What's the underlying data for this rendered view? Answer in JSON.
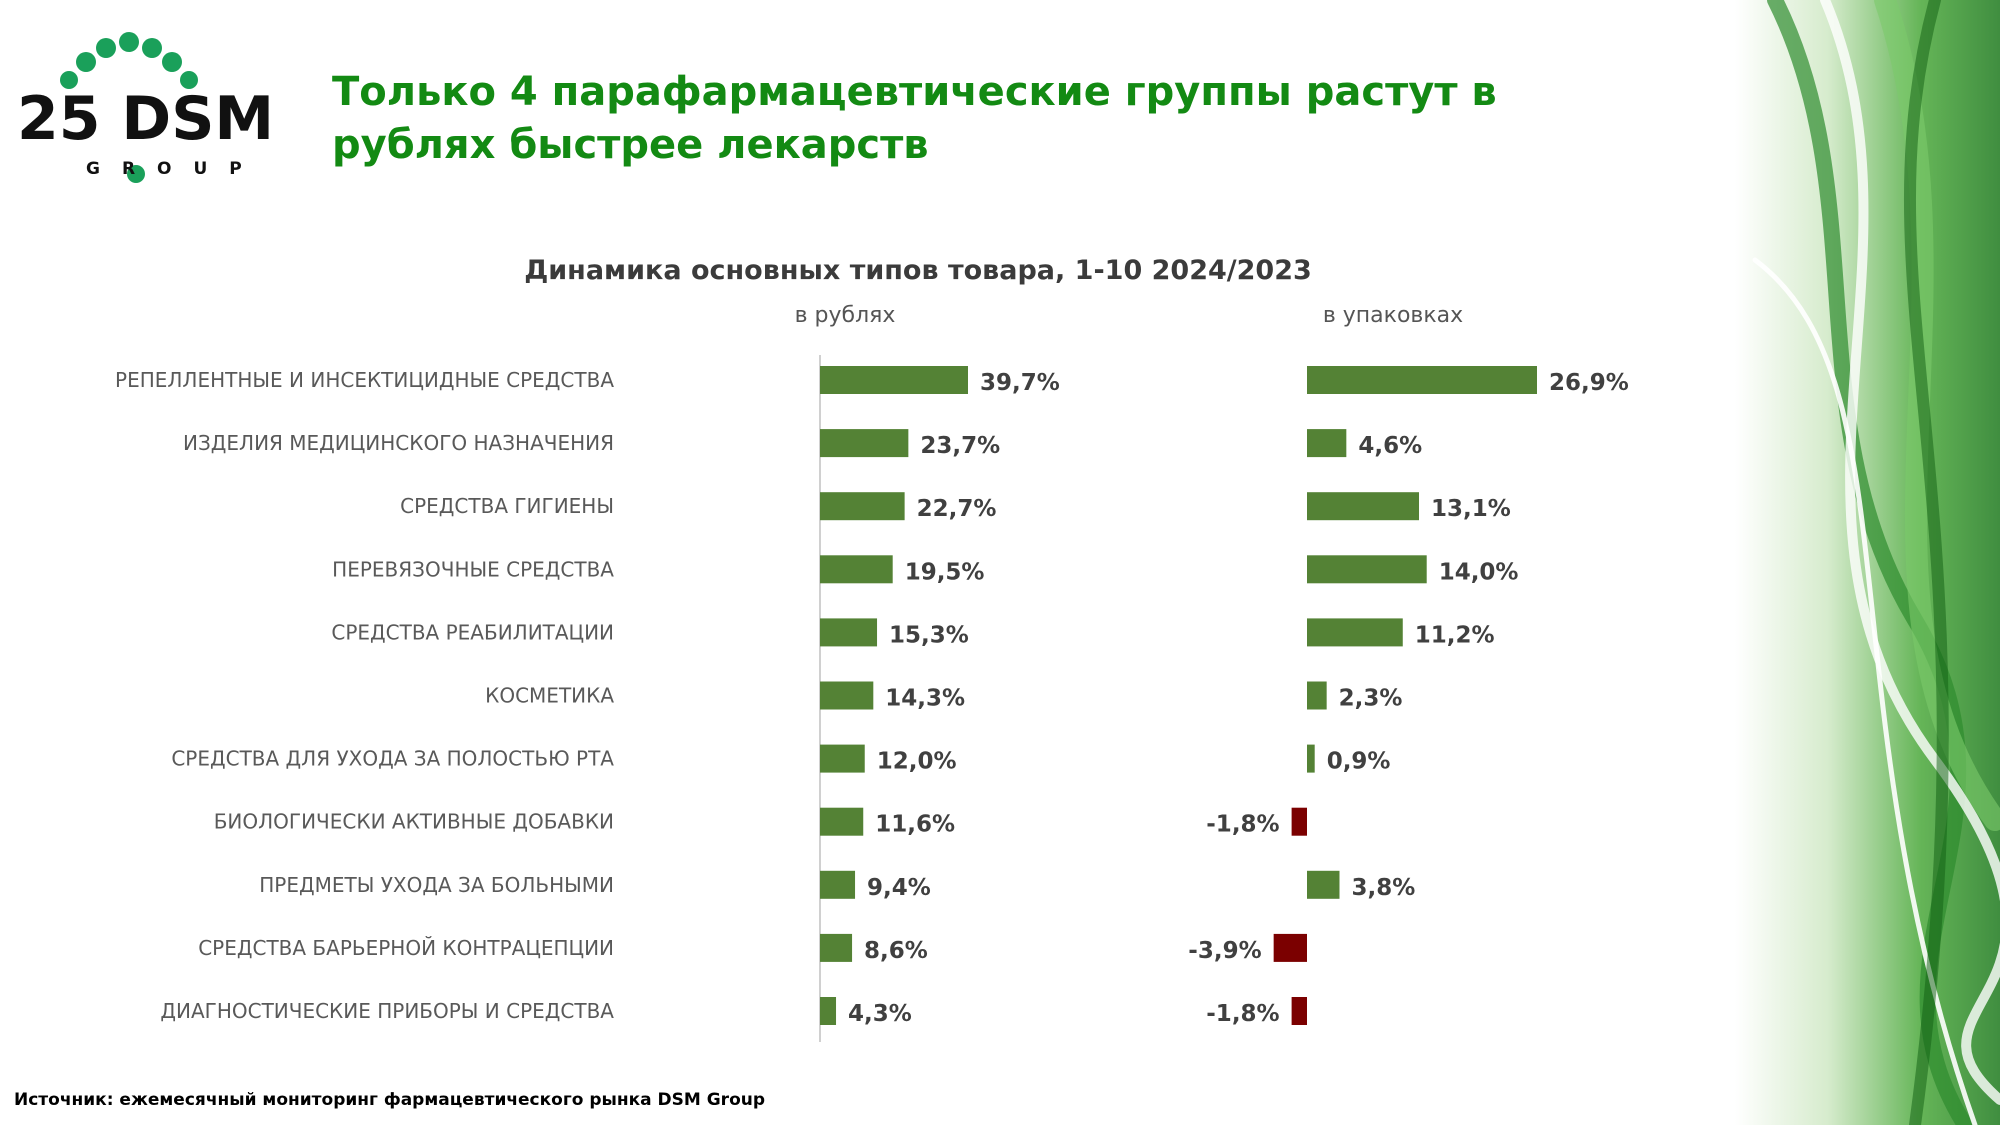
{
  "header": {
    "logo_text": "25 DSM",
    "logo_subtext": "GROUP",
    "title": "Только 4 парафармацевтические группы растут в рублях быстрее лекарств"
  },
  "footer": {
    "source": "Источник: ежемесячный мониторинг фармацевтического рынка DSM Group"
  },
  "colors": {
    "title_green": "#138a13",
    "positive_bar": "#548235",
    "negative_bar": "#7b0000",
    "logo_dots": "#1aa05a"
  },
  "chart_data": {
    "type": "bar",
    "orientation": "horizontal",
    "title": "Динамика основных типов товара, 1-10 2024/2023",
    "categories": [
      "РЕПЕЛЛЕНТНЫЕ И ИНСЕКТИЦИДНЫЕ СРЕДСТВА",
      "ИЗДЕЛИЯ МЕДИЦИНСКОГО НАЗНАЧЕНИЯ",
      "СРЕДСТВА ГИГИЕНЫ",
      "ПЕРЕВЯЗОЧНЫЕ СРЕДСТВА",
      "СРЕДСТВА РЕАБИЛИТАЦИИ",
      "КОСМЕТИКА",
      "СРЕДСТВА ДЛЯ УХОДА ЗА ПОЛОСТЬЮ РТА",
      "БИОЛОГИЧЕСКИ АКТИВНЫЕ ДОБАВКИ",
      "ПРЕДМЕТЫ УХОДА ЗА БОЛЬНЫМИ",
      "СРЕДСТВА БАРЬЕРНОЙ КОНТРАЦЕПЦИИ",
      "ДИАГНОСТИЧЕСКИЕ ПРИБОРЫ И СРЕДСТВА"
    ],
    "series": [
      {
        "name": "в рублях",
        "values": [
          39.7,
          23.7,
          22.7,
          19.5,
          15.3,
          14.3,
          12.0,
          11.6,
          9.4,
          8.6,
          4.3
        ],
        "labels": [
          "39,7%",
          "23,7%",
          "22,7%",
          "19,5%",
          "15,3%",
          "14,3%",
          "12,0%",
          "11,6%",
          "9,4%",
          "8,6%",
          "4,3%"
        ]
      },
      {
        "name": "в упаковках",
        "values": [
          26.9,
          4.6,
          13.1,
          14.0,
          11.2,
          2.3,
          0.9,
          -1.8,
          3.8,
          -3.9,
          -1.8
        ],
        "labels": [
          "26,9%",
          "4,6%",
          "13,1%",
          "14,0%",
          "11,2%",
          "2,3%",
          "0,9%",
          "-1,8%",
          "3,8%",
          "-3,9%",
          "-1,8%"
        ]
      }
    ],
    "xlabel": "",
    "ylabel": "",
    "grid": false,
    "legend": "none"
  }
}
